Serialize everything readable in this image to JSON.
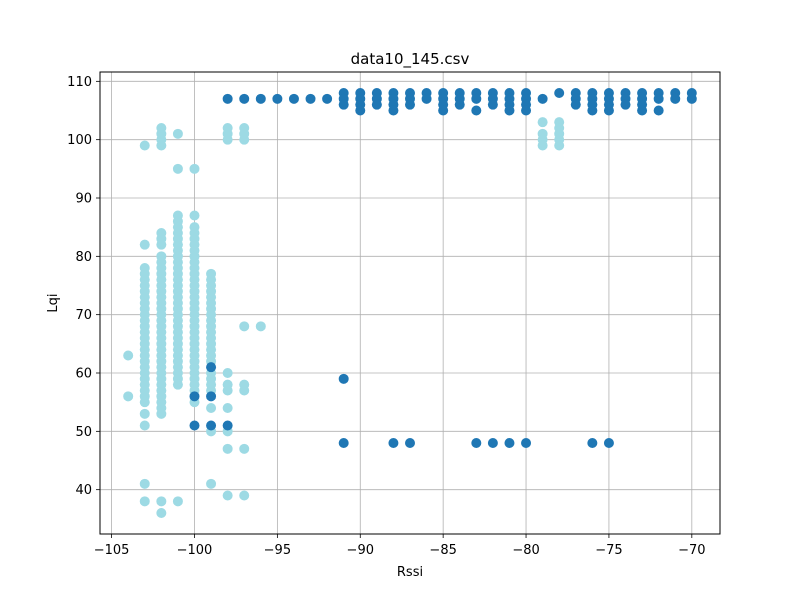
{
  "chart_data": {
    "type": "scatter",
    "title": "data10_145.csv",
    "xlabel": "Rssi",
    "ylabel": "Lqi",
    "xlim": [
      -105.7,
      -68.3
    ],
    "ylim": [
      32.4,
      111.6
    ],
    "xticks": [
      -105,
      -100,
      -95,
      -90,
      -85,
      -80,
      -75,
      -70
    ],
    "yticks": [
      40,
      50,
      60,
      70,
      80,
      90,
      100,
      110
    ],
    "grid": true,
    "legend": "none",
    "series": [
      {
        "color": "#9ddae4",
        "points": [
          [
            -104,
            63
          ],
          [
            -104,
            56
          ],
          [
            -103,
            99
          ],
          [
            -103,
            82
          ],
          [
            -103,
            78
          ],
          [
            -103,
            77
          ],
          [
            -103,
            76
          ],
          [
            -103,
            75
          ],
          [
            -103,
            74
          ],
          [
            -103,
            73
          ],
          [
            -103,
            72
          ],
          [
            -103,
            71
          ],
          [
            -103,
            70
          ],
          [
            -103,
            69
          ],
          [
            -103,
            68
          ],
          [
            -103,
            67
          ],
          [
            -103,
            66
          ],
          [
            -103,
            65
          ],
          [
            -103,
            64
          ],
          [
            -103,
            63
          ],
          [
            -103,
            62
          ],
          [
            -103,
            61
          ],
          [
            -103,
            60
          ],
          [
            -103,
            59
          ],
          [
            -103,
            58
          ],
          [
            -103,
            57
          ],
          [
            -103,
            56
          ],
          [
            -103,
            55
          ],
          [
            -103,
            53
          ],
          [
            -103,
            51
          ],
          [
            -103,
            41
          ],
          [
            -103,
            38
          ],
          [
            -102,
            102
          ],
          [
            -102,
            101
          ],
          [
            -102,
            100
          ],
          [
            -102,
            99
          ],
          [
            -102,
            84
          ],
          [
            -102,
            83
          ],
          [
            -102,
            82
          ],
          [
            -102,
            80
          ],
          [
            -102,
            79
          ],
          [
            -102,
            78
          ],
          [
            -102,
            77
          ],
          [
            -102,
            76
          ],
          [
            -102,
            75
          ],
          [
            -102,
            74
          ],
          [
            -102,
            73
          ],
          [
            -102,
            72
          ],
          [
            -102,
            71
          ],
          [
            -102,
            70
          ],
          [
            -102,
            69
          ],
          [
            -102,
            68
          ],
          [
            -102,
            67
          ],
          [
            -102,
            66
          ],
          [
            -102,
            65
          ],
          [
            -102,
            64
          ],
          [
            -102,
            63
          ],
          [
            -102,
            62
          ],
          [
            -102,
            61
          ],
          [
            -102,
            60
          ],
          [
            -102,
            59
          ],
          [
            -102,
            58
          ],
          [
            -102,
            57
          ],
          [
            -102,
            56
          ],
          [
            -102,
            55
          ],
          [
            -102,
            54
          ],
          [
            -102,
            53
          ],
          [
            -102,
            38
          ],
          [
            -102,
            36
          ],
          [
            -101,
            101
          ],
          [
            -101,
            95
          ],
          [
            -101,
            87
          ],
          [
            -101,
            86
          ],
          [
            -101,
            85
          ],
          [
            -101,
            84
          ],
          [
            -101,
            83
          ],
          [
            -101,
            82
          ],
          [
            -101,
            81
          ],
          [
            -101,
            80
          ],
          [
            -101,
            79
          ],
          [
            -101,
            78
          ],
          [
            -101,
            77
          ],
          [
            -101,
            76
          ],
          [
            -101,
            75
          ],
          [
            -101,
            74
          ],
          [
            -101,
            73
          ],
          [
            -101,
            72
          ],
          [
            -101,
            71
          ],
          [
            -101,
            70
          ],
          [
            -101,
            69
          ],
          [
            -101,
            68
          ],
          [
            -101,
            67
          ],
          [
            -101,
            66
          ],
          [
            -101,
            65
          ],
          [
            -101,
            64
          ],
          [
            -101,
            63
          ],
          [
            -101,
            62
          ],
          [
            -101,
            61
          ],
          [
            -101,
            60
          ],
          [
            -101,
            59
          ],
          [
            -101,
            58
          ],
          [
            -101,
            38
          ],
          [
            -100,
            95
          ],
          [
            -100,
            87
          ],
          [
            -100,
            85
          ],
          [
            -100,
            84
          ],
          [
            -100,
            83
          ],
          [
            -100,
            82
          ],
          [
            -100,
            81
          ],
          [
            -100,
            80
          ],
          [
            -100,
            79
          ],
          [
            -100,
            78
          ],
          [
            -100,
            77
          ],
          [
            -100,
            76
          ],
          [
            -100,
            75
          ],
          [
            -100,
            74
          ],
          [
            -100,
            73
          ],
          [
            -100,
            72
          ],
          [
            -100,
            71
          ],
          [
            -100,
            70
          ],
          [
            -100,
            69
          ],
          [
            -100,
            68
          ],
          [
            -100,
            67
          ],
          [
            -100,
            66
          ],
          [
            -100,
            65
          ],
          [
            -100,
            64
          ],
          [
            -100,
            63
          ],
          [
            -100,
            62
          ],
          [
            -100,
            61
          ],
          [
            -100,
            60
          ],
          [
            -100,
            59
          ],
          [
            -100,
            58
          ],
          [
            -100,
            57
          ],
          [
            -100,
            55
          ],
          [
            -99,
            77
          ],
          [
            -99,
            76
          ],
          [
            -99,
            75
          ],
          [
            -99,
            74
          ],
          [
            -99,
            73
          ],
          [
            -99,
            72
          ],
          [
            -99,
            71
          ],
          [
            -99,
            70
          ],
          [
            -99,
            69
          ],
          [
            -99,
            68
          ],
          [
            -99,
            67
          ],
          [
            -99,
            66
          ],
          [
            -99,
            65
          ],
          [
            -99,
            64
          ],
          [
            -99,
            63
          ],
          [
            -99,
            62
          ],
          [
            -99,
            60
          ],
          [
            -99,
            59
          ],
          [
            -99,
            58
          ],
          [
            -99,
            57
          ],
          [
            -99,
            54
          ],
          [
            -99,
            50
          ],
          [
            -99,
            41
          ],
          [
            -98,
            102
          ],
          [
            -98,
            101
          ],
          [
            -98,
            100
          ],
          [
            -98,
            60
          ],
          [
            -98,
            58
          ],
          [
            -98,
            57
          ],
          [
            -98,
            54
          ],
          [
            -98,
            50
          ],
          [
            -98,
            47
          ],
          [
            -98,
            39
          ],
          [
            -97,
            102
          ],
          [
            -97,
            101
          ],
          [
            -97,
            100
          ],
          [
            -97,
            68
          ],
          [
            -97,
            58
          ],
          [
            -97,
            57
          ],
          [
            -97,
            47
          ],
          [
            -97,
            39
          ],
          [
            -96,
            68
          ],
          [
            -79,
            103
          ],
          [
            -79,
            101
          ],
          [
            -79,
            100
          ],
          [
            -79,
            99
          ],
          [
            -78,
            103
          ],
          [
            -78,
            102
          ],
          [
            -78,
            101
          ],
          [
            -78,
            100
          ],
          [
            -78,
            99
          ]
        ]
      },
      {
        "color": "#1f77b4",
        "points": [
          [
            -100,
            56
          ],
          [
            -100,
            51
          ],
          [
            -99,
            61
          ],
          [
            -99,
            56
          ],
          [
            -99,
            51
          ],
          [
            -98,
            51
          ],
          [
            -98,
            107
          ],
          [
            -97,
            107
          ],
          [
            -96,
            107
          ],
          [
            -95,
            107
          ],
          [
            -94,
            107
          ],
          [
            -93,
            107
          ],
          [
            -92,
            107
          ],
          [
            -91,
            108
          ],
          [
            -91,
            107
          ],
          [
            -91,
            106
          ],
          [
            -91,
            59
          ],
          [
            -91,
            48
          ],
          [
            -90,
            108
          ],
          [
            -90,
            107
          ],
          [
            -90,
            106
          ],
          [
            -90,
            105
          ],
          [
            -89,
            108
          ],
          [
            -89,
            107
          ],
          [
            -89,
            106
          ],
          [
            -88,
            108
          ],
          [
            -88,
            107
          ],
          [
            -88,
            106
          ],
          [
            -88,
            105
          ],
          [
            -88,
            48
          ],
          [
            -87,
            108
          ],
          [
            -87,
            107
          ],
          [
            -87,
            106
          ],
          [
            -87,
            48
          ],
          [
            -86,
            108
          ],
          [
            -86,
            107
          ],
          [
            -85,
            108
          ],
          [
            -85,
            107
          ],
          [
            -85,
            106
          ],
          [
            -85,
            105
          ],
          [
            -84,
            108
          ],
          [
            -84,
            107
          ],
          [
            -84,
            106
          ],
          [
            -83,
            108
          ],
          [
            -83,
            107
          ],
          [
            -83,
            105
          ],
          [
            -83,
            48
          ],
          [
            -82,
            108
          ],
          [
            -82,
            107
          ],
          [
            -82,
            106
          ],
          [
            -82,
            48
          ],
          [
            -81,
            108
          ],
          [
            -81,
            107
          ],
          [
            -81,
            106
          ],
          [
            -81,
            105
          ],
          [
            -81,
            48
          ],
          [
            -80,
            108
          ],
          [
            -80,
            107
          ],
          [
            -80,
            106
          ],
          [
            -80,
            105
          ],
          [
            -80,
            48
          ],
          [
            -79,
            107
          ],
          [
            -78,
            108
          ],
          [
            -77,
            108
          ],
          [
            -77,
            107
          ],
          [
            -77,
            106
          ],
          [
            -76,
            108
          ],
          [
            -76,
            107
          ],
          [
            -76,
            106
          ],
          [
            -76,
            105
          ],
          [
            -76,
            48
          ],
          [
            -75,
            108
          ],
          [
            -75,
            107
          ],
          [
            -75,
            106
          ],
          [
            -75,
            105
          ],
          [
            -75,
            48
          ],
          [
            -74,
            108
          ],
          [
            -74,
            107
          ],
          [
            -74,
            106
          ],
          [
            -73,
            108
          ],
          [
            -73,
            107
          ],
          [
            -73,
            106
          ],
          [
            -73,
            105
          ],
          [
            -72,
            108
          ],
          [
            -72,
            107
          ],
          [
            -72,
            105
          ],
          [
            -71,
            108
          ],
          [
            -71,
            107
          ],
          [
            -70,
            108
          ],
          [
            -70,
            107
          ]
        ]
      }
    ]
  }
}
